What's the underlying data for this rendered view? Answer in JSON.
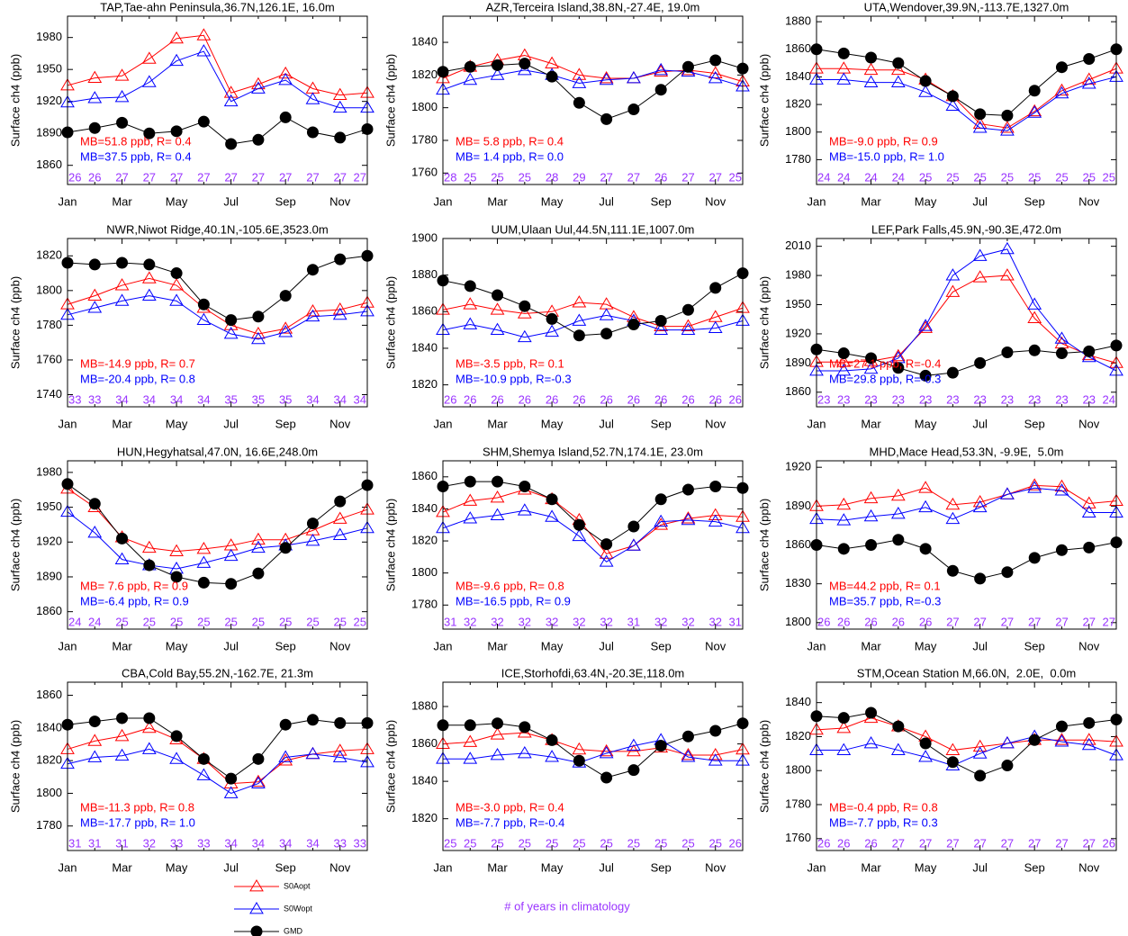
{
  "series_styles": [
    {
      "name": "S0Aopt",
      "color": "#ff0000",
      "marker": "triangle"
    },
    {
      "name": "S0Wopt",
      "color": "#0000ff",
      "marker": "triangle"
    },
    {
      "name": "GMD",
      "color": "#000000",
      "marker": "circle"
    }
  ],
  "count_note": "# of years in climatology",
  "count_color": "#9933ff",
  "chart_data": [
    {
      "type": "line",
      "title": "TAP,Tae-ahn Peninsula,36.7N,126.1E, 16.0m",
      "ylabel": "Surface ch4 (ppb)",
      "categories": [
        "Jan",
        null,
        "Mar",
        null,
        "May",
        null,
        "Jul",
        null,
        "Sep",
        null,
        "Nov",
        null
      ],
      "ylim": [
        1842,
        2000
      ],
      "yticks": [
        1860,
        1890,
        1920,
        1950,
        1980
      ],
      "series": [
        {
          "values": [
            1935,
            1942,
            1944,
            1960,
            1979,
            1982,
            1928,
            1936,
            1946,
            1932,
            1926,
            1928
          ]
        },
        {
          "values": [
            1919,
            1923,
            1924,
            1938,
            1958,
            1967,
            1920,
            1932,
            1940,
            1922,
            1914,
            1914
          ]
        },
        {
          "values": [
            1891,
            1895,
            1900,
            1890,
            1892,
            1901,
            1880,
            1884,
            1905,
            1891,
            1886,
            1894
          ]
        }
      ],
      "annotations": [
        "MB=51.8 ppb, R= 0.4",
        "MB=37.5 ppb, R= 0.4"
      ],
      "counts": [
        26,
        26,
        27,
        27,
        27,
        27,
        27,
        27,
        27,
        27,
        27,
        27
      ]
    },
    {
      "type": "line",
      "title": "AZR,Terceira Island,38.8N,-27.4E, 19.0m",
      "ylabel": "Surface ch4 (ppb)",
      "categories": [
        "Jan",
        null,
        "Mar",
        null,
        "May",
        null,
        "Jul",
        null,
        "Sep",
        null,
        "Nov",
        null
      ],
      "ylim": [
        1753,
        1856
      ],
      "yticks": [
        1760,
        1780,
        1800,
        1820,
        1840
      ],
      "series": [
        {
          "values": [
            1818,
            1825,
            1829,
            1832,
            1827,
            1820,
            1818,
            1818,
            1822,
            1823,
            1821,
            1816
          ]
        },
        {
          "values": [
            1811,
            1817,
            1820,
            1823,
            1820,
            1815,
            1817,
            1818,
            1823,
            1822,
            1818,
            1813
          ]
        },
        {
          "values": [
            1822,
            1825,
            1826,
            1827,
            1819,
            1803,
            1793,
            1799,
            1811,
            1825,
            1829,
            1824
          ]
        }
      ],
      "annotations": [
        "MB= 5.8 ppb, R= 0.4",
        "MB= 1.4 ppb, R= 0.0"
      ],
      "counts": [
        28,
        25,
        25,
        25,
        28,
        29,
        27,
        27,
        26,
        27,
        27,
        25
      ]
    },
    {
      "type": "line",
      "title": "UTA,Wendover,39.9N,-113.7E,1327.0m",
      "ylabel": "Surface ch4 (ppb)",
      "categories": [
        "Jan",
        null,
        "Mar",
        null,
        "May",
        null,
        "Jul",
        null,
        "Sep",
        null,
        "Nov",
        null
      ],
      "ylim": [
        1762,
        1884
      ],
      "yticks": [
        1780,
        1800,
        1820,
        1840,
        1860,
        1880
      ],
      "series": [
        {
          "values": [
            1846,
            1846,
            1845,
            1845,
            1838,
            1826,
            1806,
            1803,
            1815,
            1830,
            1838,
            1846
          ]
        },
        {
          "values": [
            1838,
            1838,
            1836,
            1836,
            1829,
            1819,
            1803,
            1801,
            1814,
            1828,
            1835,
            1840
          ]
        },
        {
          "values": [
            1860,
            1857,
            1854,
            1850,
            1837,
            1826,
            1813,
            1812,
            1830,
            1847,
            1853,
            1860
          ]
        }
      ],
      "annotations": [
        "MB=-9.0 ppb, R= 0.9",
        "MB=-15.0 ppb, R= 1.0"
      ],
      "counts": [
        24,
        24,
        24,
        24,
        25,
        25,
        25,
        25,
        25,
        25,
        25,
        25
      ]
    },
    {
      "type": "line",
      "title": "NWR,Niwot Ridge,40.1N,-105.6E,3523.0m",
      "ylabel": "Surface ch4 (ppb)",
      "categories": [
        "Jan",
        null,
        "Mar",
        null,
        "May",
        null,
        "Jul",
        null,
        "Sep",
        null,
        "Nov",
        null
      ],
      "ylim": [
        1733,
        1830
      ],
      "yticks": [
        1740,
        1760,
        1780,
        1800,
        1820
      ],
      "series": [
        {
          "values": [
            1792,
            1797,
            1803,
            1807,
            1803,
            1790,
            1780,
            1775,
            1778,
            1788,
            1789,
            1793
          ]
        },
        {
          "values": [
            1786,
            1790,
            1794,
            1797,
            1794,
            1783,
            1775,
            1772,
            1776,
            1785,
            1786,
            1788
          ]
        },
        {
          "values": [
            1816,
            1815,
            1816,
            1815,
            1810,
            1792,
            1783,
            1785,
            1797,
            1812,
            1818,
            1820
          ]
        }
      ],
      "annotations": [
        "MB=-14.9 ppb, R= 0.7",
        "MB=-20.4 ppb, R= 0.8"
      ],
      "counts": [
        33,
        33,
        34,
        34,
        34,
        34,
        35,
        35,
        35,
        34,
        34,
        34
      ]
    },
    {
      "type": "line",
      "title": "UUM,Ulaan Uul,44.5N,111.1E,1007.0m",
      "ylabel": "Surface ch4 (ppb)",
      "categories": [
        "Jan",
        null,
        "Mar",
        null,
        "May",
        null,
        "Jul",
        null,
        "Sep",
        null,
        "Nov",
        null
      ],
      "ylim": [
        1808,
        1900
      ],
      "yticks": [
        1820,
        1840,
        1860,
        1880,
        1900
      ],
      "series": [
        {
          "values": [
            1861,
            1864,
            1861,
            1859,
            1860,
            1865,
            1864,
            1857,
            1852,
            1852,
            1857,
            1862
          ]
        },
        {
          "values": [
            1850,
            1853,
            1850,
            1846,
            1849,
            1855,
            1858,
            1855,
            1850,
            1850,
            1851,
            1855
          ]
        },
        {
          "values": [
            1877,
            1874,
            1869,
            1863,
            1856,
            1847,
            1848,
            1853,
            1855,
            1861,
            1873,
            1881
          ]
        }
      ],
      "annotations": [
        "MB=-3.5 ppb, R= 0.1",
        "MB=-10.9 ppb, R=-0.3"
      ],
      "counts": [
        26,
        26,
        26,
        26,
        26,
        26,
        26,
        26,
        26,
        26,
        26,
        26
      ]
    },
    {
      "type": "line",
      "title": "LEF,Park Falls,45.9N,-90.3E,472.0m",
      "ylabel": "Surface ch4 (ppb)",
      "categories": [
        "Jan",
        null,
        "Mar",
        null,
        "May",
        null,
        "Jul",
        null,
        "Sep",
        null,
        "Nov",
        null
      ],
      "ylim": [
        1845,
        2018
      ],
      "yticks": [
        1860,
        1890,
        1920,
        1950,
        1980,
        2010
      ],
      "series": [
        {
          "values": [
            1891,
            1891,
            1892,
            1897,
            1926,
            1963,
            1978,
            1980,
            1936,
            1910,
            1898,
            1890
          ]
        },
        {
          "values": [
            1882,
            1882,
            1884,
            1895,
            1928,
            1980,
            2000,
            2007,
            1950,
            1915,
            1896,
            1882
          ]
        },
        {
          "values": [
            1904,
            1900,
            1895,
            1885,
            1877,
            1880,
            1890,
            1901,
            1903,
            1900,
            1902,
            1908
          ]
        }
      ],
      "annotations": [
        "MB=27.1 ppb, R=-0.4",
        "MB=29.8 ppb, R=-0.3"
      ],
      "counts": [
        23,
        23,
        23,
        23,
        23,
        23,
        23,
        23,
        23,
        23,
        23,
        24
      ]
    },
    {
      "type": "line",
      "title": "HUN,Hegyhatsal,47.0N, 16.6E,248.0m",
      "ylabel": "Surface ch4 (ppb)",
      "categories": [
        "Jan",
        null,
        "Mar",
        null,
        "May",
        null,
        "Jul",
        null,
        "Sep",
        null,
        "Nov",
        null
      ],
      "ylim": [
        1845,
        1990
      ],
      "yticks": [
        1860,
        1890,
        1920,
        1950,
        1980
      ],
      "series": [
        {
          "values": [
            1966,
            1950,
            1924,
            1915,
            1912,
            1914,
            1917,
            1922,
            1922,
            1930,
            1940,
            1948
          ]
        },
        {
          "values": [
            1946,
            1928,
            1905,
            1900,
            1897,
            1902,
            1908,
            1915,
            1917,
            1921,
            1926,
            1932
          ]
        },
        {
          "values": [
            1970,
            1953,
            1923,
            1900,
            1890,
            1885,
            1884,
            1893,
            1915,
            1936,
            1955,
            1969
          ]
        }
      ],
      "annotations": [
        "MB= 7.6 ppb, R= 0.9",
        "MB=-6.4 ppb, R= 0.9"
      ],
      "counts": [
        24,
        24,
        25,
        25,
        25,
        25,
        25,
        25,
        25,
        25,
        25,
        25
      ]
    },
    {
      "type": "line",
      "title": "SHM,Shemya Island,52.7N,174.1E, 23.0m",
      "ylabel": "Surface ch4 (ppb)",
      "categories": [
        "Jan",
        null,
        "Mar",
        null,
        "May",
        null,
        "Jul",
        null,
        "Sep",
        null,
        "Nov",
        null
      ],
      "ylim": [
        1765,
        1870
      ],
      "yticks": [
        1780,
        1800,
        1820,
        1840,
        1860
      ],
      "series": [
        {
          "values": [
            1838,
            1845,
            1847,
            1852,
            1846,
            1833,
            1812,
            1817,
            1830,
            1834,
            1836,
            1835
          ]
        },
        {
          "values": [
            1828,
            1834,
            1836,
            1839,
            1835,
            1823,
            1807,
            1817,
            1832,
            1833,
            1832,
            1828
          ]
        },
        {
          "values": [
            1854,
            1857,
            1857,
            1854,
            1846,
            1830,
            1818,
            1829,
            1846,
            1852,
            1854,
            1853
          ]
        }
      ],
      "annotations": [
        "MB=-9.6 ppb, R= 0.8",
        "MB=-16.5 ppb, R= 0.9"
      ],
      "counts": [
        31,
        32,
        32,
        32,
        32,
        32,
        32,
        31,
        32,
        32,
        32,
        31
      ]
    },
    {
      "type": "line",
      "title": "MHD,Mace Head,53.3N, -9.9E,  5.0m",
      "ylabel": "Surface ch4 (ppb)",
      "categories": [
        "Jan",
        null,
        "Mar",
        null,
        "May",
        null,
        "Jul",
        null,
        "Sep",
        null,
        "Nov",
        null
      ],
      "ylim": [
        1795,
        1925
      ],
      "yticks": [
        1800,
        1830,
        1860,
        1890,
        1920
      ],
      "series": [
        {
          "values": [
            1890,
            1891,
            1896,
            1898,
            1904,
            1891,
            1893,
            1899,
            1906,
            1905,
            1892,
            1894
          ]
        },
        {
          "values": [
            1880,
            1879,
            1882,
            1884,
            1889,
            1880,
            1889,
            1899,
            1904,
            1902,
            1885,
            1885
          ]
        },
        {
          "values": [
            1860,
            1857,
            1860,
            1864,
            1857,
            1840,
            1834,
            1839,
            1850,
            1856,
            1858,
            1862
          ]
        }
      ],
      "annotations": [
        "MB=44.2 ppb, R= 0.1",
        "MB=35.7 ppb, R=-0.3"
      ],
      "counts": [
        26,
        26,
        26,
        26,
        26,
        27,
        27,
        27,
        27,
        27,
        27,
        27
      ]
    },
    {
      "type": "line",
      "title": "CBA,Cold Bay,55.2N,-162.7E, 21.3m",
      "ylabel": "Surface ch4 (ppb)",
      "categories": [
        "Jan",
        null,
        "Mar",
        null,
        "May",
        null,
        "Jul",
        null,
        "Sep",
        null,
        "Nov",
        null
      ],
      "ylim": [
        1765,
        1868
      ],
      "yticks": [
        1780,
        1800,
        1820,
        1840,
        1860
      ],
      "series": [
        {
          "values": [
            1827,
            1832,
            1835,
            1840,
            1833,
            1821,
            1806,
            1807,
            1820,
            1824,
            1826,
            1827
          ]
        },
        {
          "values": [
            1818,
            1822,
            1823,
            1827,
            1821,
            1811,
            1800,
            1806,
            1822,
            1824,
            1822,
            1819
          ]
        },
        {
          "values": [
            1842,
            1844,
            1846,
            1846,
            1835,
            1821,
            1809,
            1821,
            1842,
            1845,
            1843,
            1843
          ]
        }
      ],
      "annotations": [
        "MB=-11.3 ppb, R= 0.8",
        "MB=-17.7 ppb, R= 1.0"
      ],
      "counts": [
        31,
        31,
        31,
        32,
        33,
        33,
        34,
        34,
        34,
        34,
        33,
        33
      ]
    },
    {
      "type": "line",
      "title": "ICE,Storhofdi,63.4N,-20.3E,118.0m",
      "ylabel": "Surface ch4 (ppb)",
      "categories": [
        "Jan",
        null,
        "Mar",
        null,
        "May",
        null,
        "Jul",
        null,
        "Sep",
        null,
        "Nov",
        null
      ],
      "ylim": [
        1803,
        1893
      ],
      "yticks": [
        1820,
        1840,
        1860,
        1880
      ],
      "series": [
        {
          "values": [
            1860,
            1861,
            1865,
            1866,
            1862,
            1857,
            1856,
            1856,
            1858,
            1854,
            1854,
            1857
          ]
        },
        {
          "values": [
            1852,
            1852,
            1854,
            1855,
            1853,
            1850,
            1855,
            1859,
            1862,
            1853,
            1851,
            1851
          ]
        },
        {
          "values": [
            1870,
            1870,
            1871,
            1869,
            1862,
            1851,
            1842,
            1846,
            1859,
            1864,
            1867,
            1871
          ]
        }
      ],
      "annotations": [
        "MB=-3.0 ppb, R= 0.4",
        "MB=-7.7 ppb, R=-0.4"
      ],
      "counts": [
        25,
        25,
        25,
        25,
        25,
        25,
        25,
        25,
        25,
        25,
        25,
        26
      ]
    },
    {
      "type": "line",
      "title": "STM,Ocean Station M,66.0N,  2.0E,  0.0m",
      "ylabel": "Surface ch4 (ppb)",
      "categories": [
        "Jan",
        null,
        "Mar",
        null,
        "May",
        null,
        "Jul",
        null,
        "Sep",
        null,
        "Nov",
        null
      ],
      "ylim": [
        1753,
        1852
      ],
      "yticks": [
        1760,
        1780,
        1800,
        1820,
        1840
      ],
      "series": [
        {
          "values": [
            1824,
            1825,
            1831,
            1826,
            1820,
            1812,
            1814,
            1816,
            1818,
            1818,
            1818,
            1817
          ]
        },
        {
          "values": [
            1812,
            1812,
            1816,
            1812,
            1808,
            1803,
            1810,
            1816,
            1820,
            1817,
            1815,
            1809
          ]
        },
        {
          "values": [
            1832,
            1831,
            1834,
            1826,
            1816,
            1805,
            1797,
            1803,
            1818,
            1826,
            1828,
            1830
          ]
        }
      ],
      "annotations": [
        "MB=-0.4 ppb, R= 0.8",
        "MB=-7.7 ppb, R= 0.3"
      ],
      "counts": [
        26,
        26,
        26,
        27,
        27,
        27,
        27,
        27,
        27,
        27,
        27,
        26
      ]
    }
  ]
}
